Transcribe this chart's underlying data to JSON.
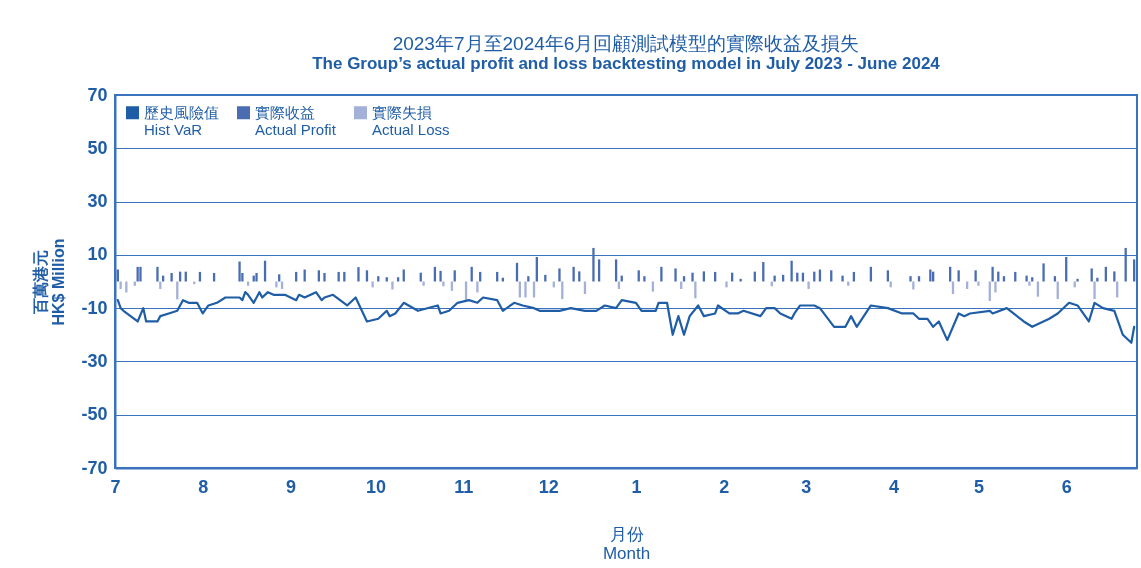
{
  "chart_data": {
    "type": "bar",
    "title": "2023年7月至2024年6月回顧測試模型的實際收益及損失",
    "subtitle": "The Group’s actual profit and loss backtesting model in July 2023 - June 2024",
    "xlabel": "月份\nMonth",
    "ylabel": "百萬港元\nHK$ Million",
    "legend": "top left",
    "grid": "y",
    "xlim": [
      "2023-07-01",
      "2024-06-26"
    ],
    "xticks": [
      {
        "value": "2023-07-01",
        "label": "7"
      },
      {
        "value": "2023-08-01",
        "label": "8"
      },
      {
        "value": "2023-09-01",
        "label": "9"
      },
      {
        "value": "2023-10-01",
        "label": "10"
      },
      {
        "value": "2023-11-01",
        "label": "11"
      },
      {
        "value": "2023-12-01",
        "label": "12"
      },
      {
        "value": "2024-01-01",
        "label": "1"
      },
      {
        "value": "2024-02-01",
        "label": "2"
      },
      {
        "value": "2024-03-01",
        "label": "3"
      },
      {
        "value": "2024-04-01",
        "label": "4"
      },
      {
        "value": "2024-05-01",
        "label": "5"
      },
      {
        "value": "2024-06-01",
        "label": "6"
      }
    ],
    "ylim": [
      -70,
      70
    ],
    "yticks": [
      -70,
      -50,
      -30,
      -10,
      10,
      30,
      50,
      70
    ],
    "series": [
      {
        "name": "歷史風險值\nHist VaR",
        "type": "line",
        "color": "#1f5da6",
        "x": [
          "2023-07-02",
          "2023-07-03",
          "2023-07-04",
          "2023-07-09",
          "2023-07-11",
          "2023-07-12",
          "2023-07-16",
          "2023-07-17",
          "2023-07-20",
          "2023-07-23",
          "2023-07-25",
          "2023-07-27",
          "2023-07-30",
          "2023-08-01",
          "2023-08-03",
          "2023-08-06",
          "2023-08-09",
          "2023-08-14",
          "2023-08-15",
          "2023-08-16",
          "2023-08-17",
          "2023-08-19",
          "2023-08-21",
          "2023-08-22",
          "2023-08-24",
          "2023-08-26",
          "2023-08-30",
          "2023-09-03",
          "2023-09-04",
          "2023-09-06",
          "2023-09-10",
          "2023-09-12",
          "2023-09-13",
          "2023-09-16",
          "2023-09-21",
          "2023-09-24",
          "2023-09-28",
          "2023-10-02",
          "2023-10-05",
          "2023-10-06",
          "2023-10-08",
          "2023-10-11",
          "2023-10-16",
          "2023-10-23",
          "2023-10-24",
          "2023-10-27",
          "2023-10-30",
          "2023-11-03",
          "2023-11-06",
          "2023-11-08",
          "2023-11-13",
          "2023-11-15",
          "2023-11-19",
          "2023-11-22",
          "2023-11-26",
          "2023-11-28",
          "2023-12-05",
          "2023-12-09",
          "2023-12-14",
          "2023-12-18",
          "2023-12-21",
          "2023-12-25",
          "2023-12-27",
          "2024-01-01",
          "2024-01-03",
          "2024-01-08",
          "2024-01-09",
          "2024-01-12",
          "2024-01-14",
          "2024-01-16",
          "2024-01-18",
          "2024-01-20",
          "2024-01-23",
          "2024-01-25",
          "2024-01-29",
          "2024-01-30",
          "2024-02-03",
          "2024-02-06",
          "2024-02-08",
          "2024-02-14",
          "2024-02-16",
          "2024-02-19",
          "2024-02-21",
          "2024-02-25",
          "2024-02-26",
          "2024-02-28",
          "2024-03-04",
          "2024-03-06",
          "2024-03-11",
          "2024-03-15",
          "2024-03-17",
          "2024-03-19",
          "2024-03-24",
          "2024-03-30",
          "2024-04-04",
          "2024-04-08",
          "2024-04-10",
          "2024-04-13",
          "2024-04-15",
          "2024-04-17",
          "2024-04-20",
          "2024-04-24",
          "2024-04-26",
          "2024-04-28",
          "2024-05-05",
          "2024-05-06",
          "2024-05-11",
          "2024-05-17",
          "2024-05-20",
          "2024-05-26",
          "2024-05-29",
          "2024-06-02",
          "2024-06-05",
          "2024-06-09",
          "2024-06-11",
          "2024-06-14",
          "2024-06-18",
          "2024-06-21",
          "2024-06-24",
          "2024-06-25"
        ],
        "values": [
          -7,
          -10,
          -11,
          -15,
          -10,
          -15,
          -15,
          -13,
          -12,
          -11,
          -7,
          -8,
          -8,
          -12,
          -9,
          -8,
          -6,
          -6,
          -7,
          -4,
          -5,
          -8,
          -4,
          -6,
          -4,
          -5,
          -5,
          -7,
          -5,
          -6,
          -4,
          -7,
          -6,
          -5,
          -9,
          -6,
          -15,
          -14,
          -11,
          -13,
          -12,
          -8,
          -11,
          -9,
          -12,
          -11,
          -8,
          -7,
          -8,
          -6,
          -7,
          -11,
          -8,
          -9,
          -10,
          -11,
          -11,
          -10,
          -11,
          -11,
          -9,
          -10,
          -7,
          -8,
          -11,
          -11,
          -8,
          -8,
          -20,
          -13,
          -20,
          -13,
          -9,
          -13,
          -12,
          -9,
          -12,
          -12,
          -11,
          -13,
          -10,
          -10,
          -12,
          -14,
          -12,
          -9,
          -9,
          -10,
          -17,
          -17,
          -13,
          -17,
          -9,
          -10,
          -12,
          -12,
          -14,
          -14,
          -17,
          -15,
          -22,
          -12,
          -13,
          -12,
          -11,
          -12,
          -10,
          -15,
          -17,
          -14,
          -12,
          -8,
          -9,
          -15,
          -8,
          -10,
          -11,
          -20,
          -23,
          -17
        ]
      },
      {
        "name": "實際收益\nActual Profit",
        "color": "#4a6db2",
        "x": [
          "2023-07-02",
          "2023-07-09",
          "2023-07-10",
          "2023-07-16",
          "2023-07-18",
          "2023-07-21",
          "2023-07-24",
          "2023-07-26",
          "2023-07-31",
          "2023-08-05",
          "2023-08-14",
          "2023-08-15",
          "2023-08-19",
          "2023-08-20",
          "2023-08-23",
          "2023-08-28",
          "2023-09-03",
          "2023-09-06",
          "2023-09-11",
          "2023-09-13",
          "2023-09-18",
          "2023-09-20",
          "2023-09-25",
          "2023-09-28",
          "2023-10-02",
          "2023-10-05",
          "2023-10-09",
          "2023-10-11",
          "2023-10-17",
          "2023-10-22",
          "2023-10-24",
          "2023-10-29",
          "2023-11-04",
          "2023-11-07",
          "2023-11-13",
          "2023-11-15",
          "2023-11-20",
          "2023-11-24",
          "2023-11-27",
          "2023-11-30",
          "2023-12-05",
          "2023-12-10",
          "2023-12-12",
          "2023-12-17",
          "2023-12-19",
          "2023-12-25",
          "2023-12-27",
          "2024-01-02",
          "2024-01-04",
          "2024-01-10",
          "2024-01-15",
          "2024-01-18",
          "2024-01-21",
          "2024-01-25",
          "2024-01-29",
          "2024-02-04",
          "2024-02-07",
          "2024-02-12",
          "2024-02-15",
          "2024-02-19",
          "2024-02-22",
          "2024-02-25",
          "2024-02-27",
          "2024-02-29",
          "2024-03-04",
          "2024-03-06",
          "2024-03-10",
          "2024-03-14",
          "2024-03-18",
          "2024-03-24",
          "2024-03-30",
          "2024-04-07",
          "2024-04-10",
          "2024-04-14",
          "2024-04-15",
          "2024-04-21",
          "2024-04-24",
          "2024-04-30",
          "2024-05-06",
          "2024-05-08",
          "2024-05-10",
          "2024-05-14",
          "2024-05-18",
          "2024-05-20",
          "2024-05-24",
          "2024-05-28",
          "2024-06-01",
          "2024-06-05",
          "2024-06-10",
          "2024-06-12",
          "2024-06-15",
          "2024-06-18",
          "2024-06-22",
          "2024-06-25"
        ],
        "values": [
          4.5,
          5.5,
          5.5,
          5.5,
          2.2,
          3.2,
          3.7,
          3.7,
          3.6,
          3.2,
          7.5,
          3.2,
          2.2,
          3.2,
          7.8,
          2.7,
          3.6,
          4.5,
          4.2,
          3.2,
          3.6,
          3.6,
          5.4,
          4.2,
          2.0,
          1.6,
          1.6,
          4.5,
          3.3,
          5.5,
          4.0,
          4.2,
          5.5,
          3.6,
          3.6,
          1.4,
          7.0,
          2.0,
          9.2,
          2.5,
          4.9,
          5.5,
          3.8,
          12.6,
          8.3,
          8.3,
          2.2,
          4.2,
          2.0,
          5.5,
          4.9,
          2.0,
          3.3,
          3.8,
          3.6,
          3.3,
          1.0,
          3.7,
          7.3,
          2.2,
          2.5,
          7.8,
          3.3,
          3.3,
          3.7,
          4.5,
          4.2,
          2.2,
          3.6,
          5.5,
          4.2,
          2.0,
          2.0,
          4.5,
          3.7,
          5.5,
          4.2,
          4.2,
          5.5,
          3.7,
          2.0,
          3.6,
          2.2,
          1.6,
          6.8,
          2.0,
          9.2,
          1.0,
          4.9,
          1.4,
          5.5,
          3.8,
          12.6,
          8.3
        ]
      },
      {
        "name": "實際失損\nActual Loss",
        "color": "#a3b0d8",
        "x": [
          "2023-07-03",
          "2023-07-05",
          "2023-07-08",
          "2023-07-17",
          "2023-07-23",
          "2023-07-29",
          "2023-08-17",
          "2023-08-27",
          "2023-08-29",
          "2023-09-30",
          "2023-10-07",
          "2023-10-18",
          "2023-10-25",
          "2023-10-28",
          "2023-11-02",
          "2023-11-06",
          "2023-11-21",
          "2023-11-23",
          "2023-11-26",
          "2023-12-03",
          "2023-12-06",
          "2023-12-14",
          "2023-12-26",
          "2024-01-07",
          "2024-01-17",
          "2024-01-22",
          "2024-02-02",
          "2024-02-18",
          "2024-03-02",
          "2024-03-16",
          "2024-03-31",
          "2024-04-08",
          "2024-04-22",
          "2024-04-27",
          "2024-05-01",
          "2024-05-05",
          "2024-05-07",
          "2024-05-19",
          "2024-05-22",
          "2024-05-29",
          "2024-06-04",
          "2024-06-11",
          "2024-06-19"
        ],
        "values": [
          -2.8,
          -4.1,
          -1.6,
          -2.8,
          -6.7,
          -1.0,
          -1.6,
          -2.2,
          -2.8,
          -2.2,
          -3.0,
          -1.6,
          -1.8,
          -3.5,
          -7.3,
          -4.1,
          -6.0,
          -6.0,
          -6.0,
          -2.2,
          -6.6,
          -4.7,
          -2.8,
          -3.8,
          -2.8,
          -6.3,
          -2.2,
          -1.8,
          -2.8,
          -1.6,
          -2.2,
          -3.0,
          -4.7,
          -2.8,
          -1.6,
          -7.3,
          -4.1,
          -1.6,
          -5.7,
          -6.6,
          -2.2,
          -6.6,
          -6.0
        ]
      }
    ]
  }
}
